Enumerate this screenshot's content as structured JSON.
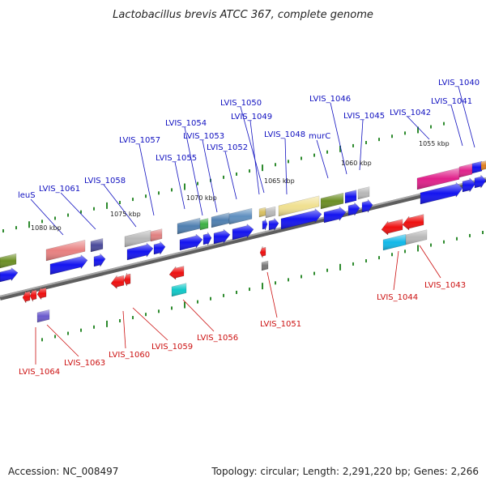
{
  "title": "Lactobacillus brevis ATCC 367, complete genome",
  "footer": {
    "accession": "Accession: NC_008497",
    "topology": "Topology: circular; Length: 2,291,220 bp; Genes: 2,266"
  },
  "colors": {
    "forward_label": "#1010c0",
    "reverse_label": "#cc1010",
    "backbone": "#808080",
    "tick": "#2e8b2e"
  },
  "kbp_ticks": [
    "1080 kbp",
    "1075 kbp",
    "1070 kbp",
    "1065 kbp",
    "1060 kbp",
    "1055 kbp"
  ],
  "top_labels": [
    "leuS",
    "LVIS_1061",
    "LVIS_1058",
    "LVIS_1057",
    "LVIS_1055",
    "LVIS_1054",
    "LVIS_1053",
    "LVIS_1052",
    "LVIS_1050",
    "LVIS_1049",
    "LVIS_1048",
    "murC",
    "LVIS_1046",
    "LVIS_1045",
    "LVIS_1042",
    "LVIS_1041",
    "LVIS_1040"
  ],
  "bottom_labels": [
    "LVIS_1064",
    "LVIS_1063",
    "LVIS_1060",
    "LVIS_1059",
    "LVIS_1056",
    "LVIS_1051",
    "LVIS_1044",
    "LVIS_1043"
  ]
}
